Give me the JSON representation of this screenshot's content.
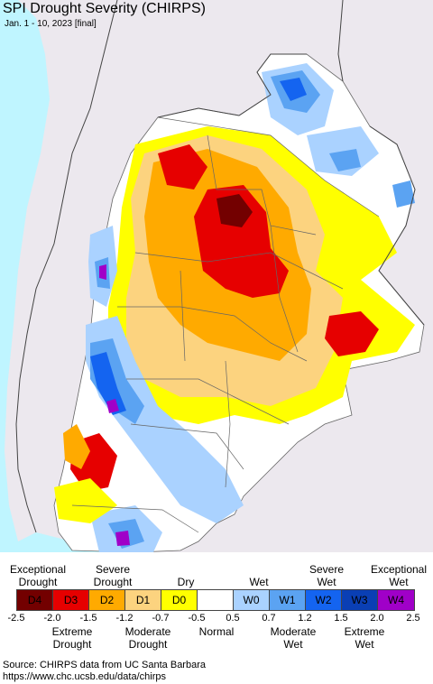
{
  "header": {
    "title": "SPI Drought Severity (CHIRPS)",
    "subtitle": "Jan. 1 - 10, 2023 [final]"
  },
  "map": {
    "ocean_color": "#bff5ff",
    "land_outside_color": "#ece8ee",
    "border_color": "#555555"
  },
  "legend": {
    "classes": [
      {
        "code": "D4",
        "color": "#730000"
      },
      {
        "code": "D3",
        "color": "#e60000"
      },
      {
        "code": "D2",
        "color": "#ffaa00"
      },
      {
        "code": "D1",
        "color": "#fcd37f"
      },
      {
        "code": "D0",
        "color": "#ffff00"
      },
      {
        "code": "",
        "color": "#ffffff"
      },
      {
        "code": "W0",
        "color": "#aad2ff"
      },
      {
        "code": "W1",
        "color": "#5ba3f2"
      },
      {
        "code": "W2",
        "color": "#1464f0"
      },
      {
        "code": "W3",
        "color": "#0a3fb4"
      },
      {
        "code": "W4",
        "color": "#a000c8"
      }
    ],
    "top_labels": [
      {
        "line1": "Exceptional",
        "line2": "Drought"
      },
      {
        "line1": "Severe",
        "line2": "Drought"
      },
      {
        "line1": "Dry",
        "line2": ""
      },
      {
        "line1": "Wet",
        "line2": ""
      },
      {
        "line1": "Severe",
        "line2": "Wet"
      },
      {
        "line1": "Exceptional",
        "line2": "Wet"
      }
    ],
    "bottom_labels": [
      {
        "line1": "Extreme",
        "line2": "Drought"
      },
      {
        "line1": "Moderate",
        "line2": "Drought"
      },
      {
        "line1": "Normal",
        "line2": ""
      },
      {
        "line1": "Moderate",
        "line2": "Wet"
      },
      {
        "line1": "Extreme",
        "line2": "Wet"
      }
    ],
    "ticks": [
      "-2.5",
      "-2.0",
      "-1.5",
      "-1.2",
      "-0.7",
      "-0.5",
      "0.5",
      "0.7",
      "1.2",
      "1.5",
      "2.0",
      "2.5"
    ]
  },
  "source": {
    "line1": "Source: CHIRPS data from UC Santa Barbara",
    "line2": "https://www.chc.ucsb.edu/data/chirps"
  }
}
